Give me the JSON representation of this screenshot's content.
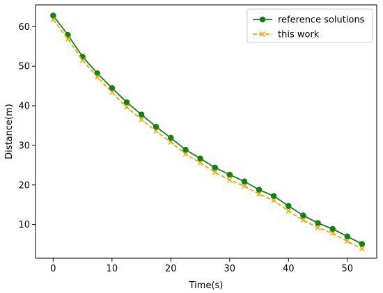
{
  "chart_data": {
    "type": "line",
    "title": "",
    "xlabel": "Time(s)",
    "ylabel": "Distance(m)",
    "xlim": [
      -3,
      55
    ],
    "ylim": [
      1.5,
      65.5
    ],
    "xticks": [
      0,
      10,
      20,
      30,
      40,
      50
    ],
    "yticks": [
      10,
      20,
      30,
      40,
      50,
      60
    ],
    "grid": false,
    "legend_position": "top-right",
    "x": [
      0,
      2.5,
      5,
      7.5,
      10,
      12.5,
      15,
      17.5,
      20,
      22.5,
      25,
      27.5,
      30,
      32.5,
      35,
      37.5,
      40,
      42.5,
      45,
      47.5,
      50,
      52.5
    ],
    "series": [
      {
        "name": "reference solutions",
        "color": "#158015",
        "style": "solid",
        "marker": "circle",
        "values": [
          62.8,
          57.9,
          52.4,
          48.2,
          44.5,
          40.9,
          37.8,
          34.7,
          31.9,
          28.9,
          26.7,
          24.4,
          22.6,
          20.9,
          18.8,
          17.2,
          14.7,
          12.3,
          10.4,
          8.9,
          7.0,
          5.1
        ]
      },
      {
        "name": "this work",
        "color": "#f5a30a",
        "style": "dashed",
        "marker": "x",
        "values": [
          61.8,
          56.9,
          51.5,
          47.3,
          43.4,
          39.7,
          36.5,
          33.6,
          30.8,
          27.8,
          25.6,
          23.2,
          21.3,
          19.7,
          17.7,
          16.1,
          13.4,
          11.1,
          9.2,
          7.8,
          5.8,
          3.9
        ]
      }
    ]
  }
}
